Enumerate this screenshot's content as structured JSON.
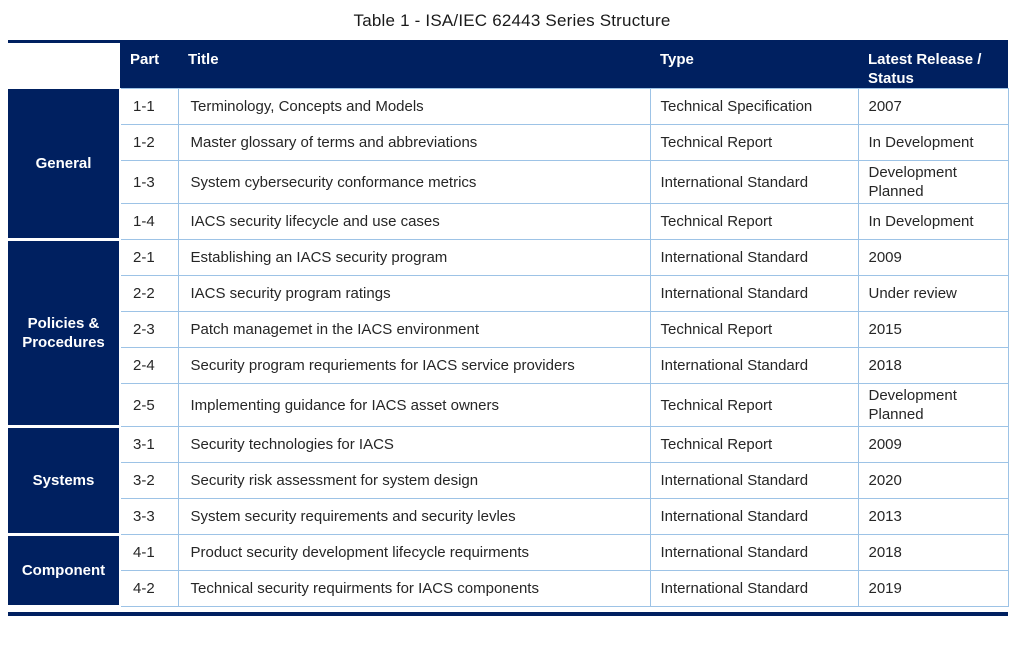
{
  "page_title": "Table 1 - ISA/IEC 62443 Series Structure",
  "colors": {
    "navy": "#002060",
    "cell_border": "#9DC3E6",
    "text": "#262626"
  },
  "table": {
    "headers": {
      "part": "Part",
      "title": "Title",
      "type": "Type",
      "status": "Latest Release / Status"
    },
    "groups": [
      {
        "name": "General",
        "rows": [
          {
            "part": "1-1",
            "title": "Terminology, Concepts and Models",
            "type": "Technical Specification",
            "status": "2007"
          },
          {
            "part": "1-2",
            "title": "Master glossary of terms and abbreviations",
            "type": "Technical Report",
            "status": "In Development"
          },
          {
            "part": "1-3",
            "title": "System cybersecurity conformance metrics",
            "type": "International Standard",
            "status": "Development Planned"
          },
          {
            "part": "1-4",
            "title": "IACS security lifecycle and use cases",
            "type": "Technical Report",
            "status": "In Development"
          }
        ]
      },
      {
        "name": "Policies & Procedures",
        "rows": [
          {
            "part": "2-1",
            "title": "Establishing an IACS security program",
            "type": "International Standard",
            "status": "2009"
          },
          {
            "part": "2-2",
            "title": "IACS security program ratings",
            "type": "International Standard",
            "status": "Under review"
          },
          {
            "part": "2-3",
            "title": "Patch managemet in the IACS environment",
            "type": "Technical Report",
            "status": "2015"
          },
          {
            "part": "2-4",
            "title": "Security program requriements for IACS service providers",
            "type": "International Standard",
            "status": "2018"
          },
          {
            "part": "2-5",
            "title": "Implementing guidance for IACS asset owners",
            "type": "Technical Report",
            "status": "Development Planned"
          }
        ]
      },
      {
        "name": "Systems",
        "rows": [
          {
            "part": "3-1",
            "title": "Security technologies for IACS",
            "type": "Technical Report",
            "status": "2009"
          },
          {
            "part": "3-2",
            "title": "Security risk assessment for system design",
            "type": "International Standard",
            "status": "2020"
          },
          {
            "part": "3-3",
            "title": "System security requirements and security levles",
            "type": "International Standard",
            "status": "2013"
          }
        ]
      },
      {
        "name": "Component",
        "rows": [
          {
            "part": "4-1",
            "title": "Product security  development lifecycle requirments",
            "type": "International Standard",
            "status": "2018"
          },
          {
            "part": "4-2",
            "title": "Technical security requirments for IACS components",
            "type": "International Standard",
            "status": "2019"
          }
        ]
      }
    ]
  }
}
